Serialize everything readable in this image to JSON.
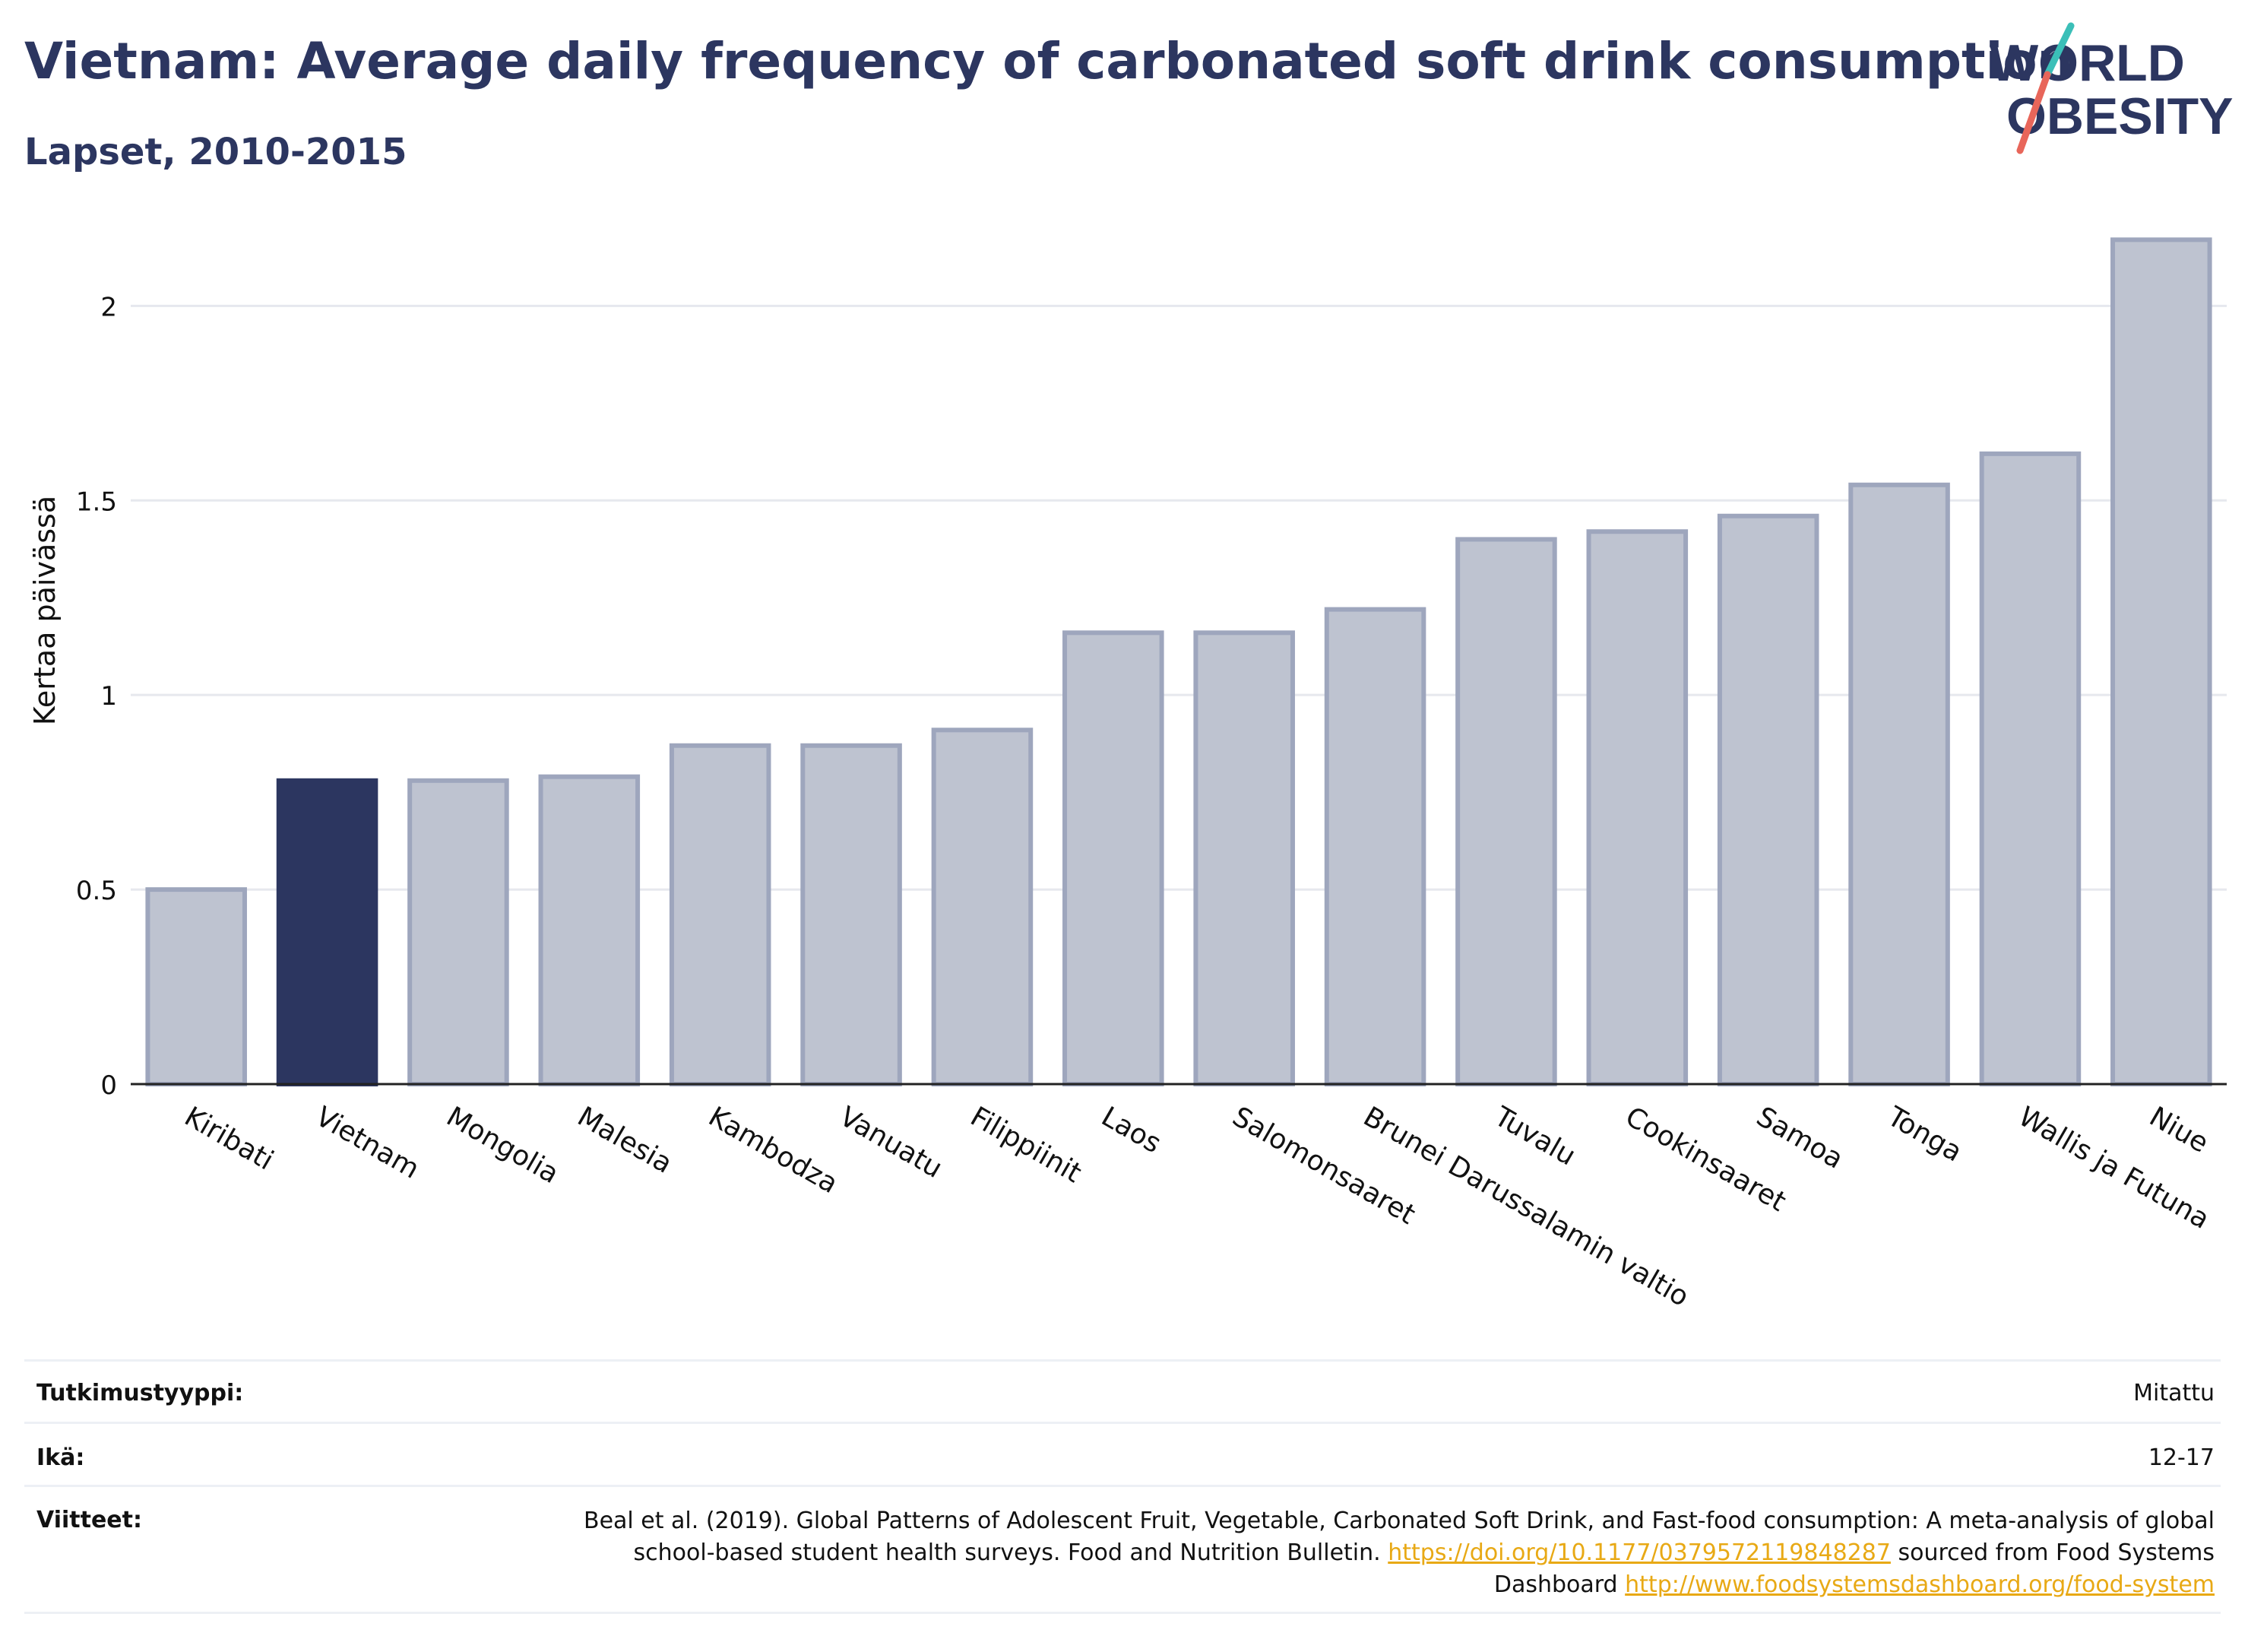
{
  "title": "Vietnam: Average daily frequency of carbonated soft drink consumption",
  "subtitle": "Lapset, 2010-2015",
  "logo": {
    "line1": "WORLD",
    "line2": "OBESITY"
  },
  "colors": {
    "highlight": "#2c3660",
    "bar": "#bec3d0",
    "bar_border": "#9ea6bd",
    "grid": "#e6e8ee",
    "link": "#e8a915"
  },
  "chart_data": {
    "type": "bar",
    "ylabel": "Kertaa päivässä",
    "xlabel": "",
    "ylim": [
      0,
      2.2
    ],
    "yticks": [
      0,
      0.5,
      1,
      1.5,
      2
    ],
    "ytick_labels": [
      "0",
      "0.5",
      "1",
      "1.5",
      "2"
    ],
    "grid": true,
    "highlight": "Vietnam",
    "categories": [
      "Kiribati",
      "Vietnam",
      "Mongolia",
      "Malesia",
      "Kambodza",
      "Vanuatu",
      "Filippiinit",
      "Laos",
      "Salomonsaaret",
      "Brunei Darussalamin valtio",
      "Tuvalu",
      "Cookinsaaret",
      "Samoa",
      "Tonga",
      "Wallis ja Futuna",
      "Niue"
    ],
    "values": [
      0.5,
      0.78,
      0.78,
      0.79,
      0.87,
      0.87,
      0.91,
      1.16,
      1.16,
      1.22,
      1.4,
      1.42,
      1.46,
      1.54,
      1.62,
      2.17
    ]
  },
  "meta": {
    "study_type_label": "Tutkimustyyppi:",
    "study_type_value": "Mitattu",
    "age_label": "Ikä:",
    "age_value": "12-17",
    "refs_label": "Viitteet:",
    "ref_text_1": "Beal et al. (2019). Global Patterns of Adolescent Fruit, Vegetable, Carbonated Soft Drink, and Fast-food consumption: A meta-analysis of global school-based student health surveys. Food and Nutrition Bulletin.",
    "ref_link_1": "https://doi.org/10.1177/0379572119848287",
    "ref_text_2": "sourced from Food Systems Dashboard",
    "ref_link_2": "http://www.foodsystemsdashboard.org/food-system"
  }
}
